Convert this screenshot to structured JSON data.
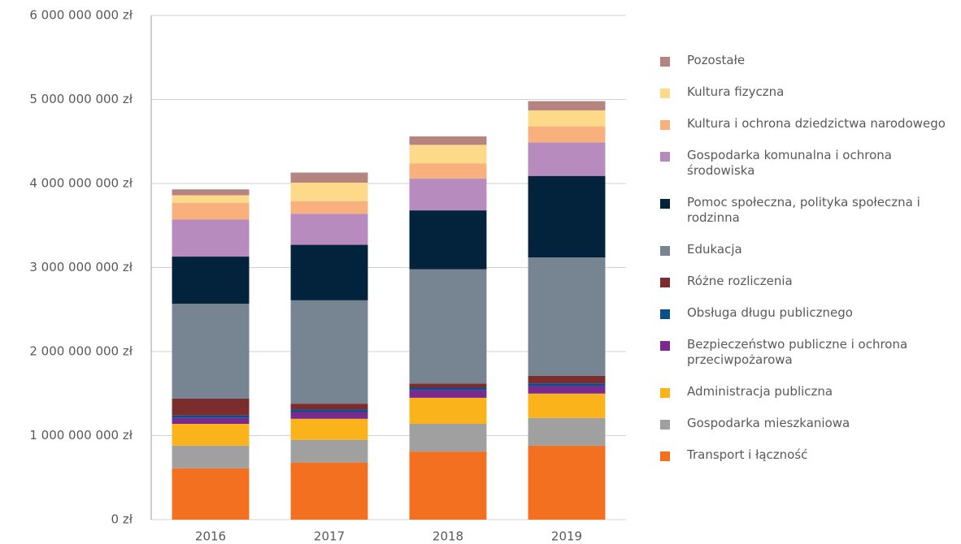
{
  "chart_data": {
    "type": "stacked_bar",
    "categories": [
      "2016",
      "2017",
      "2018",
      "2019"
    ],
    "ylim": [
      0,
      6000000000
    ],
    "yticks": [
      {
        "value": 0,
        "label": "0 zł"
      },
      {
        "value": 1000000000,
        "label": "1 000 000 000 zł"
      },
      {
        "value": 2000000000,
        "label": "2 000 000 000 zł"
      },
      {
        "value": 3000000000,
        "label": "3 000 000 000 zł"
      },
      {
        "value": 4000000000,
        "label": "4 000 000 000 zł"
      },
      {
        "value": 5000000000,
        "label": "5 000 000 000 zł"
      },
      {
        "value": 6000000000,
        "label": "6 000 000 000 zł"
      }
    ],
    "grid": true,
    "legend": "right",
    "series": [
      {
        "name": "Transport i łączność",
        "color": "#f37021",
        "values": [
          610000000,
          680000000,
          810000000,
          880000000
        ]
      },
      {
        "name": "Gospodarka mieszkaniowa",
        "color": "#a0a0a0",
        "values": [
          270000000,
          270000000,
          330000000,
          330000000
        ]
      },
      {
        "name": "Administracja publiczna",
        "color": "#fbb31b",
        "values": [
          260000000,
          250000000,
          310000000,
          290000000
        ]
      },
      {
        "name": "Bezpieczeństwo publiczne i ochrona przeciwpożarowa",
        "color": "#7a2a8f",
        "values": [
          70000000,
          80000000,
          90000000,
          90000000
        ]
      },
      {
        "name": "Obsługa długu publicznego",
        "color": "#0b4f8a",
        "values": [
          30000000,
          30000000,
          30000000,
          30000000
        ]
      },
      {
        "name": "Różne rozliczenia",
        "color": "#7b2d2d",
        "values": [
          200000000,
          70000000,
          50000000,
          90000000
        ]
      },
      {
        "name": "Edukacja",
        "color": "#768591",
        "values": [
          1130000000,
          1230000000,
          1360000000,
          1410000000
        ]
      },
      {
        "name": "Pomoc społeczna, polityka społeczna i rodzinna",
        "color": "#03223c",
        "values": [
          560000000,
          660000000,
          700000000,
          970000000
        ]
      },
      {
        "name": "Gospodarka komunalna i ochrona środowiska",
        "color": "#b88bbf",
        "values": [
          440000000,
          370000000,
          380000000,
          400000000
        ]
      },
      {
        "name": "Kultura i ochrona dziedzictwa narodowego",
        "color": "#f8b07d",
        "values": [
          200000000,
          150000000,
          180000000,
          190000000
        ]
      },
      {
        "name": "Kultura fizyczna",
        "color": "#fdd98a",
        "values": [
          90000000,
          220000000,
          220000000,
          190000000
        ]
      },
      {
        "name": "Pozostałe",
        "color": "#b58380",
        "values": [
          70000000,
          120000000,
          100000000,
          110000000
        ]
      }
    ]
  }
}
